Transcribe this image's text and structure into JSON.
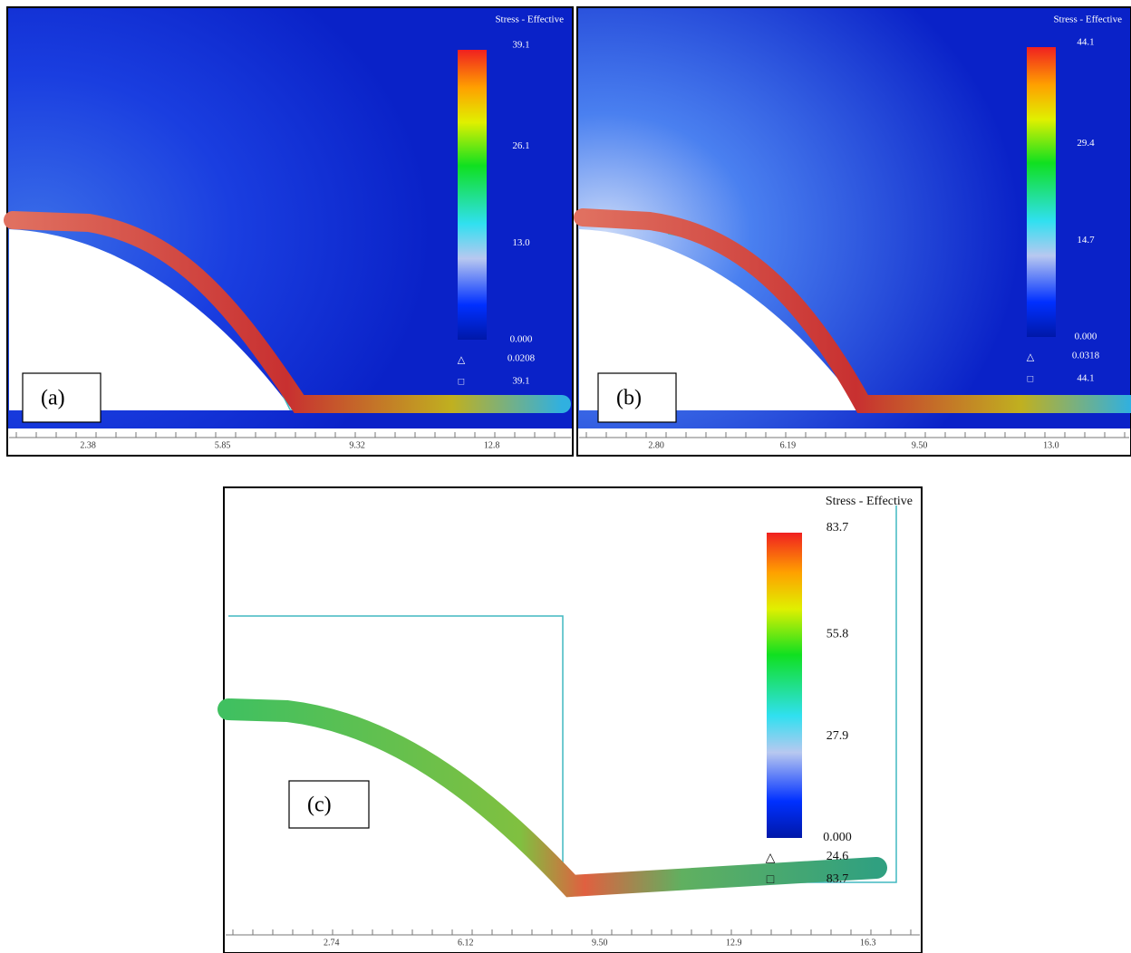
{
  "panels": [
    {
      "label": "(a)",
      "legend": {
        "title": "Stress - Effective",
        "ticks": [
          "39.1",
          "26.1",
          "13.0",
          "0.000"
        ],
        "min_marker": "0.0208",
        "max_marker": "39.1"
      },
      "axis_ticks": [
        "2.38",
        "5.85",
        "9.32",
        "12.8"
      ]
    },
    {
      "label": "(b)",
      "legend": {
        "title": "Stress - Effective",
        "ticks": [
          "44.1",
          "29.4",
          "14.7",
          "0.000"
        ],
        "min_marker": "0.0318",
        "max_marker": "44.1"
      },
      "axis_ticks": [
        "2.80",
        "6.19",
        "9.50",
        "13.0"
      ]
    },
    {
      "label": "(c)",
      "legend": {
        "title": "Stress - Effective",
        "ticks": [
          "83.7",
          "55.8",
          "27.9",
          "0.000"
        ],
        "min_marker": "24.6",
        "max_marker": "83.7"
      },
      "axis_ticks": [
        "2.74",
        "6.12",
        "9.50",
        "12.9",
        "16.3"
      ]
    }
  ]
}
